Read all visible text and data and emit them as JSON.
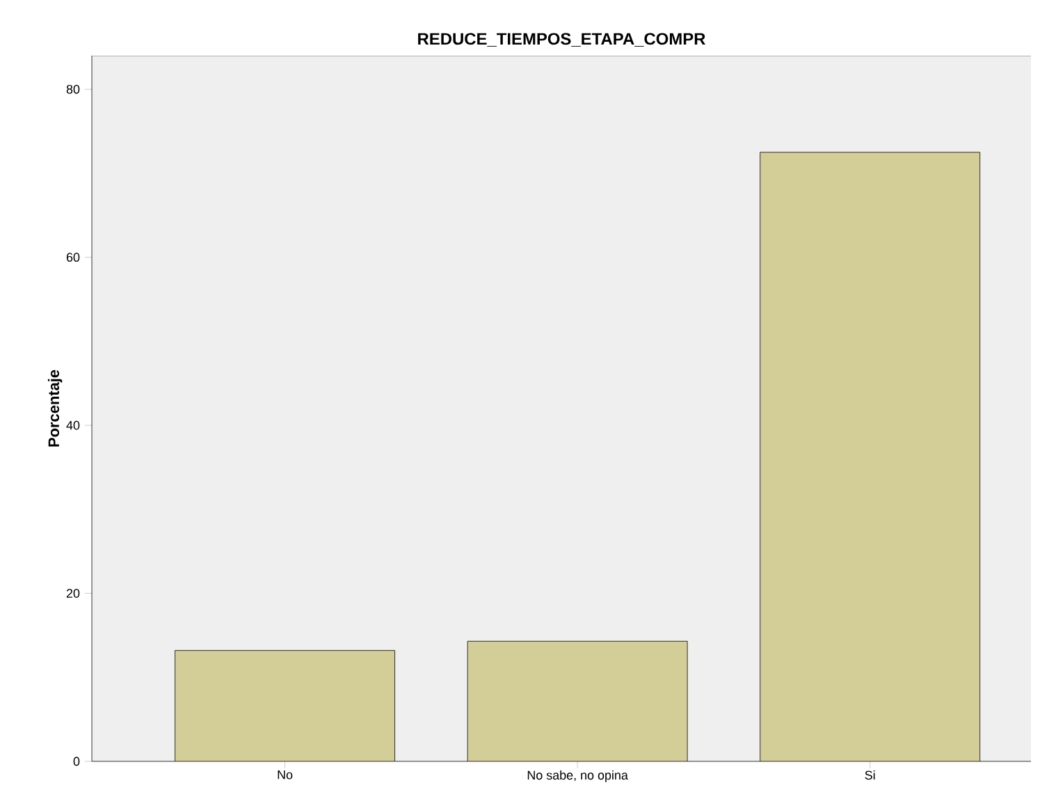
{
  "chart_data": {
    "type": "bar",
    "title": "REDUCE_TIEMPOS_ETAPA_COMPR",
    "ylabel": "Porcentaje",
    "categories": [
      "No",
      "No sabe, no opina",
      "Si"
    ],
    "values": [
      13.2,
      14.3,
      72.5
    ],
    "color": "#d3ce97",
    "ylim": [
      0,
      84
    ],
    "yticks": [
      0,
      20,
      40,
      60,
      80
    ]
  }
}
